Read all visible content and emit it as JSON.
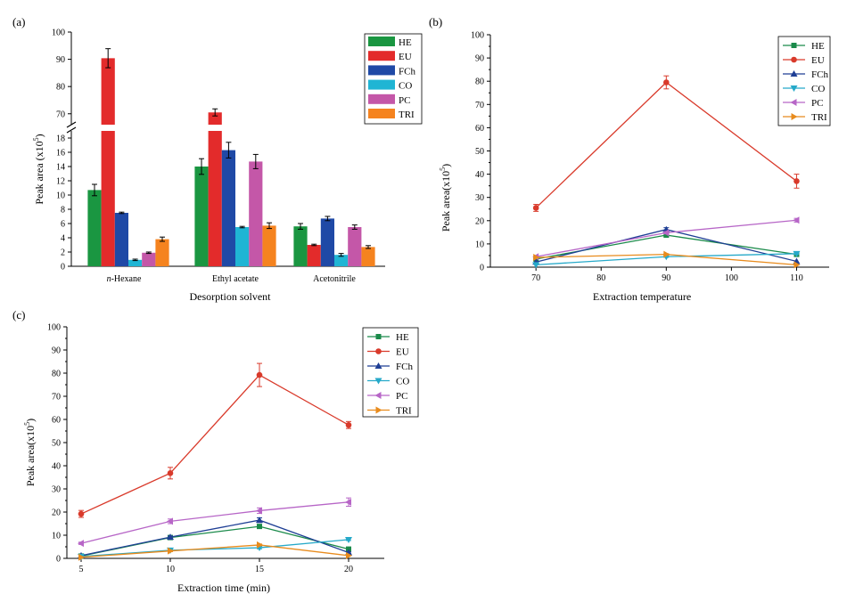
{
  "colors": {
    "HE": "#1a9641",
    "EU": "#e32b2b",
    "FCh": "#1f49a6",
    "CO": "#1fb5d4",
    "PC": "#c457a8",
    "TRI": "#f5831f",
    "line_HE": "#1a8a4a",
    "line_EU": "#d93a2b",
    "line_FCh": "#1f3f95",
    "line_CO": "#26a9c9",
    "line_PC": "#b766c7",
    "line_TRI": "#e88b1d"
  },
  "chart_data": [
    {
      "panel": "(a)",
      "type": "bar",
      "title": "",
      "xlabel": "Desorption solvent",
      "ylabel": "Peak area (x10",
      "ylabel_sup": "5",
      "ylabel_close": ")",
      "categories": [
        "n-Hexane",
        "Ethyl acetate",
        "Acetonitrile"
      ],
      "category_prefix": "n",
      "category_rest": "-Hexane",
      "ylim_lower": [
        0,
        19
      ],
      "ylim_upper": [
        66,
        100
      ],
      "axis_break": [
        19,
        66
      ],
      "yticks_lower": [
        "0",
        "2",
        "4",
        "6",
        "8",
        "10",
        "12",
        "14",
        "16",
        "18"
      ],
      "yticks_upper": [
        "70",
        "80",
        "90",
        "100"
      ],
      "legend_position": "top-right",
      "series": [
        {
          "name": "HE",
          "values": [
            10.7,
            14.0,
            5.6
          ],
          "errors": [
            0.8,
            1.1,
            0.4
          ]
        },
        {
          "name": "EU",
          "values": [
            90.4,
            70.5,
            3.0
          ],
          "errors": [
            3.5,
            1.3,
            0.1
          ]
        },
        {
          "name": "FCh",
          "values": [
            7.5,
            16.3,
            6.7
          ],
          "errors": [
            0.1,
            1.1,
            0.3
          ]
        },
        {
          "name": "CO",
          "values": [
            0.9,
            5.5,
            1.6
          ],
          "errors": [
            0.1,
            0.1,
            0.2
          ]
        },
        {
          "name": "PC",
          "values": [
            1.9,
            14.7,
            5.5
          ],
          "errors": [
            0.1,
            1.0,
            0.3
          ]
        },
        {
          "name": "TRI",
          "values": [
            3.8,
            5.7,
            2.7
          ],
          "errors": [
            0.3,
            0.4,
            0.2
          ]
        }
      ]
    },
    {
      "panel": "(b)",
      "type": "line",
      "title": "",
      "xlabel": "Extraction temperature",
      "ylabel": "Peak area(x10",
      "ylabel_sup": "5",
      "ylabel_close": ")",
      "x": [
        70,
        90,
        110
      ],
      "xlim": [
        63,
        115
      ],
      "xticks": [
        "70",
        "80",
        "90",
        "100",
        "110"
      ],
      "ylim": [
        0,
        100
      ],
      "yticks": [
        "0",
        "10",
        "20",
        "30",
        "40",
        "50",
        "60",
        "70",
        "80",
        "90",
        "100"
      ],
      "legend_position": "top-right",
      "series": [
        {
          "name": "HE",
          "marker": "square",
          "values": [
            3.5,
            13.8,
            5.5
          ],
          "errors": [
            0,
            0.7,
            0
          ]
        },
        {
          "name": "EU",
          "marker": "circle",
          "values": [
            25.5,
            79.5,
            37.0
          ],
          "errors": [
            1.5,
            2.8,
            3.0
          ]
        },
        {
          "name": "FCh",
          "marker": "triangle-up",
          "values": [
            2.2,
            16.2,
            2.5
          ],
          "errors": [
            0,
            0.8,
            0
          ]
        },
        {
          "name": "CO",
          "marker": "triangle-down",
          "values": [
            1.0,
            4.5,
            5.8
          ],
          "errors": [
            0,
            0.3,
            0.3
          ]
        },
        {
          "name": "PC",
          "marker": "triangle-left",
          "values": [
            4.5,
            14.8,
            20.2
          ],
          "errors": [
            0,
            0.5,
            0.8
          ]
        },
        {
          "name": "TRI",
          "marker": "triangle-right",
          "values": [
            4.2,
            5.5,
            1.0
          ],
          "errors": [
            0,
            0.3,
            0
          ]
        }
      ]
    },
    {
      "panel": "(c)",
      "type": "line",
      "title": "",
      "xlabel": "Extraction time (min)",
      "ylabel": "Peak area(x10",
      "ylabel_sup": "5",
      "ylabel_close": ")",
      "x": [
        5,
        10,
        15,
        20
      ],
      "xlim": [
        4.2,
        22
      ],
      "xticks": [
        "5",
        "10",
        "15",
        "20"
      ],
      "ylim": [
        0,
        100
      ],
      "yticks": [
        "0",
        "10",
        "20",
        "30",
        "40",
        "50",
        "60",
        "70",
        "80",
        "90",
        "100"
      ],
      "legend_position": "top-right",
      "series": [
        {
          "name": "HE",
          "marker": "square",
          "values": [
            1.0,
            9.0,
            13.8,
            4.0
          ],
          "errors": [
            0,
            0.5,
            0.8,
            0.3
          ]
        },
        {
          "name": "EU",
          "marker": "circle",
          "values": [
            19.2,
            36.8,
            79.2,
            57.6
          ],
          "errors": [
            1.5,
            2.5,
            5.0,
            1.5
          ]
        },
        {
          "name": "FCh",
          "marker": "triangle-up",
          "values": [
            1.2,
            9.2,
            16.5,
            2.5
          ],
          "errors": [
            0,
            0.5,
            1.0,
            0.3
          ]
        },
        {
          "name": "CO",
          "marker": "triangle-down",
          "values": [
            0.8,
            3.5,
            4.6,
            8.1
          ],
          "errors": [
            0,
            0.3,
            0.5,
            0.4
          ]
        },
        {
          "name": "PC",
          "marker": "triangle-left",
          "values": [
            6.5,
            16.0,
            20.6,
            24.3
          ],
          "errors": [
            0.5,
            1.0,
            1.2,
            1.8
          ]
        },
        {
          "name": "TRI",
          "marker": "triangle-right",
          "values": [
            0.5,
            3.2,
            5.8,
            1.2
          ],
          "errors": [
            0,
            0.3,
            0.4,
            0
          ]
        }
      ]
    }
  ]
}
